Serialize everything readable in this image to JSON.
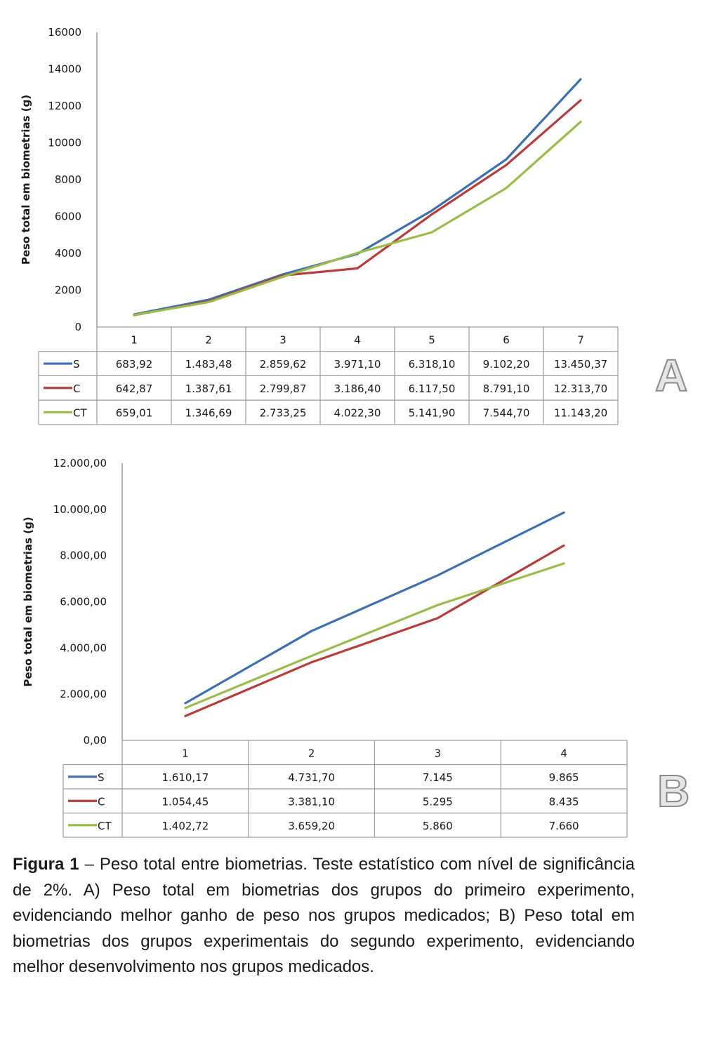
{
  "chart_data": [
    {
      "type": "line",
      "panel": "A",
      "ylabel": "Peso total em biometrias (g)",
      "xlabel": "",
      "ylim": [
        0,
        16000
      ],
      "ytick_labels": [
        "0",
        "2000",
        "4000",
        "6000",
        "8000",
        "10000",
        "12000",
        "14000",
        "16000"
      ],
      "categories": [
        "1",
        "2",
        "3",
        "4",
        "5",
        "6",
        "7"
      ],
      "series": [
        {
          "name": "S",
          "color": "#3e6fb0",
          "values": [
            683.92,
            1483.48,
            2859.62,
            3971.1,
            6318.1,
            9102.2,
            13450.37
          ],
          "labels": [
            "683,92",
            "1.483,48",
            "2.859,62",
            "3.971,10",
            "6.318,10",
            "9.102,20",
            "13.450,37"
          ]
        },
        {
          "name": "C",
          "color": "#b53d3a",
          "values": [
            642.87,
            1387.61,
            2799.87,
            3186.4,
            6117.5,
            8791.1,
            12313.7
          ],
          "labels": [
            "642,87",
            "1.387,61",
            "2.799,87",
            "3.186,40",
            "6.117,50",
            "8.791,10",
            "12.313,70"
          ]
        },
        {
          "name": "CT",
          "color": "#9bbb4a",
          "values": [
            659.01,
            1346.69,
            2733.25,
            4022.3,
            5141.9,
            7544.7,
            11143.2
          ],
          "labels": [
            "659,01",
            "1.346,69",
            "2.733,25",
            "4.022,30",
            "5.141,90",
            "7.544,70",
            "11.143,20"
          ]
        }
      ],
      "grid": false,
      "legend": "data-table"
    },
    {
      "type": "line",
      "panel": "B",
      "ylabel": "Peso total em biometrias (g)",
      "xlabel": "",
      "ylim": [
        0,
        12000
      ],
      "ytick_labels": [
        "0,00",
        "2.000,00",
        "4.000,00",
        "6.000,00",
        "8.000,00",
        "10.000,00",
        "12.000,00"
      ],
      "categories": [
        "1",
        "2",
        "3",
        "4"
      ],
      "series": [
        {
          "name": "S",
          "color": "#3e6fb0",
          "values": [
            1610.17,
            4731.7,
            7145,
            9865
          ],
          "labels": [
            "1.610,17",
            "4.731,70",
            "7.145",
            "9.865"
          ]
        },
        {
          "name": "C",
          "color": "#b53d3a",
          "values": [
            1054.45,
            3381.1,
            5295,
            8435
          ],
          "labels": [
            "1.054,45",
            "3.381,10",
            "5.295",
            "8.435"
          ]
        },
        {
          "name": "CT",
          "color": "#9bbb4a",
          "values": [
            1402.72,
            3659.2,
            5860,
            7660
          ],
          "labels": [
            "1.402,72",
            "3.659,20",
            "5.860",
            "7.660"
          ]
        }
      ],
      "grid": false,
      "legend": "data-table"
    }
  ],
  "panel_letters": {
    "a": "A",
    "b": "B"
  },
  "caption": {
    "bold": "Figura 1",
    "text": " – Peso total entre biometrias. Teste estatístico com nível de significância de 2%. A) Peso total em biometrias dos grupos do primeiro experimento, evidenciando melhor ganho de peso nos grupos medicados; B) Peso total em biometrias dos grupos experimentais do segundo experimento, evidenciando melhor desenvolvimento nos grupos medicados."
  }
}
